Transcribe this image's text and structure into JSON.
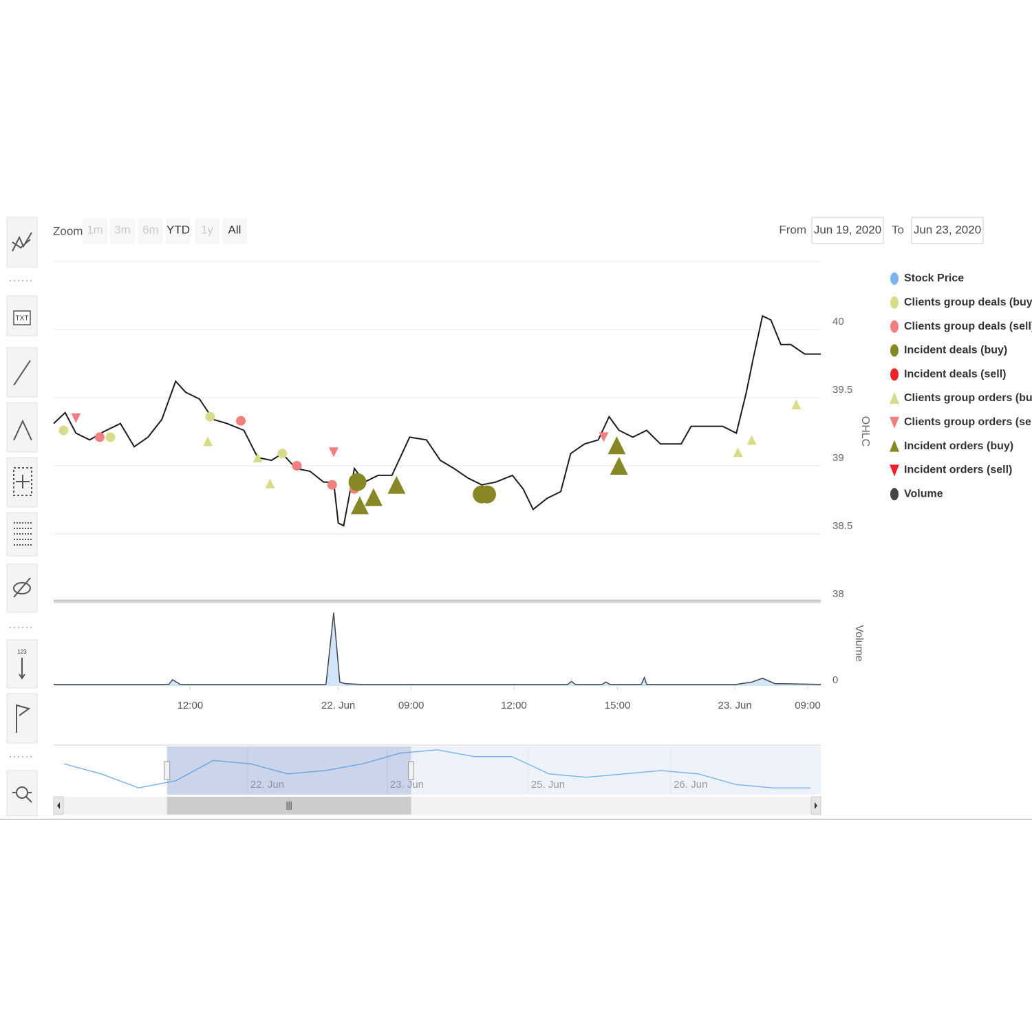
{
  "toolbar": {
    "text_icon": "TXT",
    "number_icon": "123"
  },
  "range_selector": {
    "zoom_label": "Zoom",
    "buttons": [
      {
        "label": "1m",
        "enabled": false
      },
      {
        "label": "3m",
        "enabled": false
      },
      {
        "label": "6m",
        "enabled": false
      },
      {
        "label": "YTD",
        "enabled": true
      },
      {
        "label": "1y",
        "enabled": false
      },
      {
        "label": "All",
        "enabled": true
      }
    ],
    "from_label": "From",
    "from": "Jun 19, 2020",
    "to_label": "To",
    "to": "Jun 23, 2020"
  },
  "chart_data": {
    "type": "stock",
    "y_label": "OHLC",
    "y2_label": "Volume",
    "xlim": [
      0,
      100
    ],
    "xticks": [
      {
        "value": 17.8,
        "label": "12:00"
      },
      {
        "value": 37.1,
        "label": "22. Jun"
      },
      {
        "value": 46.6,
        "label": "09:00"
      },
      {
        "value": 60.0,
        "label": "12:00"
      },
      {
        "value": 73.5,
        "label": "15:00"
      },
      {
        "value": 88.8,
        "label": "23. Jun"
      },
      {
        "value": 98.3,
        "label": "09:00"
      }
    ],
    "ylim": [
      38,
      40.5
    ],
    "yticks": [
      38,
      38.5,
      39,
      39.5,
      40
    ],
    "y2lim": [
      0,
      100
    ],
    "y2ticks": [
      0
    ],
    "grid": true,
    "legend": "right",
    "series": [
      {
        "name": "Stock Price",
        "color": "#7cb5ec",
        "line_color": "#1b1b1b",
        "type": "line",
        "marker": "circle",
        "x": [
          0,
          1.5,
          2.9,
          4.7,
          6.5,
          8.7,
          10.5,
          12.3,
          14.1,
          15.9,
          17.2,
          19.0,
          20.8,
          22.6,
          24.8,
          26.6,
          28.4,
          29.8,
          31.6,
          33.4,
          35.2,
          36.5,
          37.1,
          37.8,
          39.2,
          40.5,
          42.3,
          44.1,
          46.4,
          48.6,
          50.4,
          52.2,
          54.0,
          55.8,
          57.6,
          59.8,
          61.2,
          62.5,
          64.3,
          66.1,
          67.4,
          69.2,
          71.0,
          72.4,
          73.7,
          75.5,
          77.3,
          79.1,
          81.8,
          83.1,
          85.4,
          87.2,
          89.0,
          90.3,
          91.2,
          92.4,
          93.5,
          94.8,
          96.1,
          97.9,
          100
        ],
        "values": [
          39.31,
          39.39,
          39.24,
          39.19,
          39.25,
          39.31,
          39.14,
          39.21,
          39.34,
          39.62,
          39.54,
          39.49,
          39.34,
          39.31,
          39.26,
          39.06,
          39.04,
          39.09,
          38.98,
          38.96,
          38.88,
          38.88,
          38.58,
          38.56,
          38.98,
          38.88,
          38.93,
          38.93,
          39.21,
          39.19,
          39.04,
          38.98,
          38.91,
          38.86,
          38.88,
          38.93,
          38.83,
          38.68,
          38.76,
          38.81,
          39.09,
          39.16,
          39.19,
          39.36,
          39.26,
          39.21,
          39.26,
          39.16,
          39.16,
          39.29,
          39.29,
          39.29,
          39.24,
          39.54,
          39.79,
          40.1,
          40.07,
          39.89,
          39.89,
          39.82,
          39.82
        ]
      },
      {
        "name": "Clients group deals (buy)",
        "color": "#d8dc8a",
        "type": "scatter",
        "marker": "circle",
        "size": 7,
        "x": [
          1.3,
          7.4,
          20.4,
          29.8
        ],
        "values": [
          39.26,
          39.21,
          39.36,
          39.09
        ]
      },
      {
        "name": "Clients group deals (sell)",
        "color": "#f08080",
        "type": "scatter",
        "marker": "circle",
        "size": 7,
        "x": [
          6.0,
          24.4,
          31.7,
          36.3,
          39.2
        ],
        "values": [
          39.21,
          39.33,
          39.0,
          38.86,
          38.83
        ]
      },
      {
        "name": "Incident deals (buy)",
        "color": "#878726",
        "type": "scatter",
        "marker": "circle",
        "size": 13,
        "x": [
          39.6,
          55.8,
          56.5
        ],
        "values": [
          38.88,
          38.79,
          38.79
        ]
      },
      {
        "name": "Incident deals (sell)",
        "color": "#e8252a",
        "type": "scatter",
        "marker": "circle",
        "size": 13,
        "x": [],
        "values": []
      },
      {
        "name": "Clients group orders (buy)",
        "color": "#d8dc8a",
        "type": "scatter",
        "marker": "triangle",
        "size": 7,
        "x": [
          20.1,
          26.6,
          28.2,
          89.2,
          91.0,
          96.8
        ],
        "values": [
          39.18,
          39.06,
          38.87,
          39.1,
          39.19,
          39.45
        ]
      },
      {
        "name": "Clients group orders (sell)",
        "color": "#f08080",
        "type": "scatter",
        "marker": "triangle-down",
        "size": 7,
        "x": [
          2.9,
          36.5,
          71.7
        ],
        "values": [
          39.35,
          39.1,
          39.21
        ]
      },
      {
        "name": "Incident orders (buy)",
        "color": "#878726",
        "type": "scatter",
        "marker": "triangle",
        "size": 13,
        "x": [
          39.9,
          41.7,
          44.7,
          73.4,
          73.7
        ],
        "values": [
          38.71,
          38.77,
          38.86,
          39.15,
          39.0
        ]
      },
      {
        "name": "Incident orders (sell)",
        "color": "#e8252a",
        "type": "scatter",
        "marker": "triangle-down",
        "size": 13,
        "x": [],
        "values": []
      },
      {
        "name": "Volume",
        "color": "#434348",
        "fill_color": "#7cb5ec",
        "type": "area",
        "marker": "circle",
        "axis": "y2",
        "x": [
          0,
          15,
          15.5,
          16.5,
          35.5,
          36.5,
          37.3,
          38,
          40,
          67,
          67.5,
          68,
          71.5,
          72,
          72.5,
          76.6,
          77,
          77.3,
          89,
          91,
          92.4,
          94,
          100
        ],
        "values": [
          2,
          2,
          8,
          2,
          2,
          95,
          5,
          3,
          2,
          2,
          6,
          2,
          2,
          5,
          2,
          2,
          11,
          2,
          2,
          5,
          10,
          3,
          2
        ]
      }
    ],
    "navigator": {
      "color": "#7cb5ec",
      "xlim": [
        0,
        100
      ],
      "ylim": [
        0,
        100
      ],
      "x": [
        0,
        5,
        10,
        15,
        20,
        25,
        30,
        35,
        40,
        45,
        50,
        55,
        60,
        65,
        70,
        75,
        80,
        85,
        90,
        95,
        100
      ],
      "values": [
        64,
        43,
        14,
        29,
        71,
        64,
        43,
        50,
        64,
        86,
        93,
        79,
        79,
        43,
        36,
        43,
        50,
        43,
        21,
        14,
        14
      ],
      "ticks": [
        {
          "value": 24.6,
          "label": "22. Jun"
        },
        {
          "value": 43.3,
          "label": "23. Jun"
        },
        {
          "value": 62.2,
          "label": "25. Jun"
        },
        {
          "value": 81.3,
          "label": "26. Jun"
        }
      ],
      "selection": [
        13.8,
        46.5
      ]
    }
  }
}
